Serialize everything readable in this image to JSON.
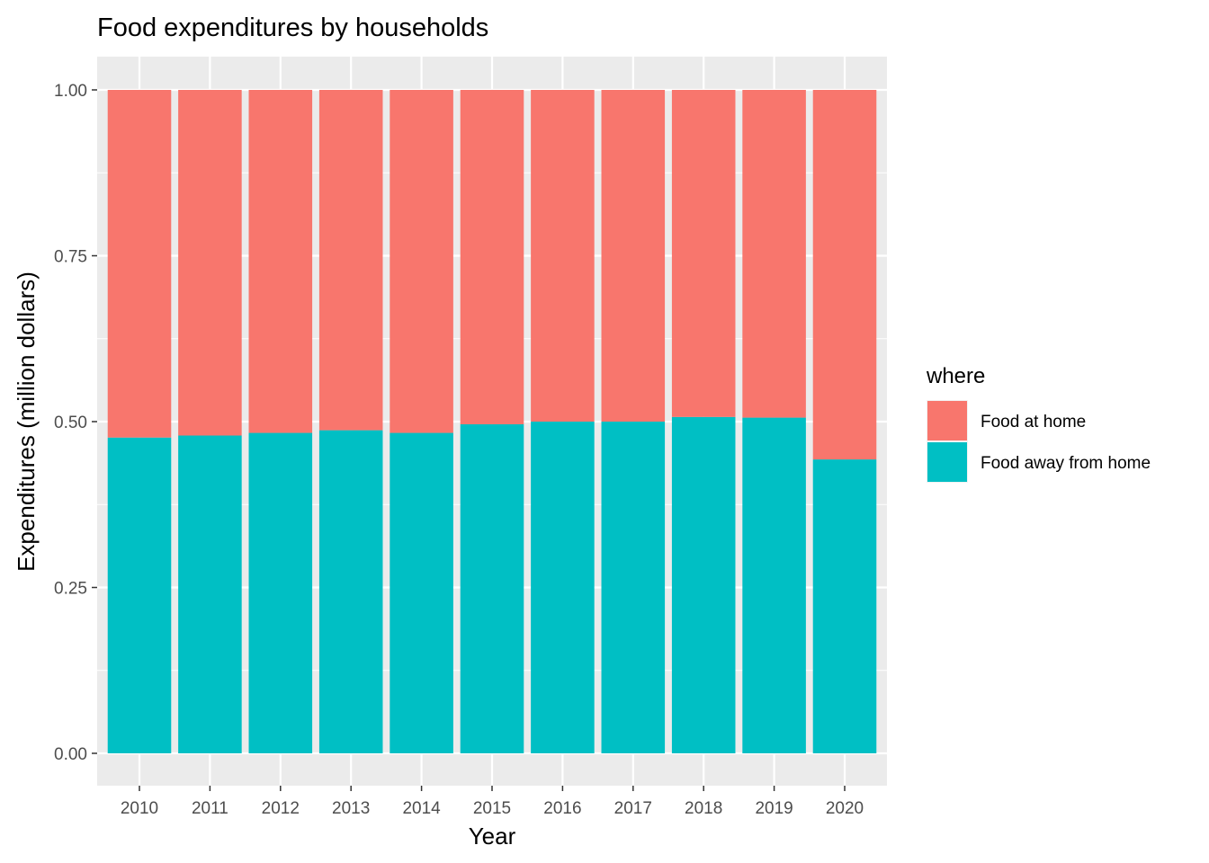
{
  "chart_data": {
    "type": "bar",
    "stacked": "fill",
    "title": "Food expenditures by households",
    "xlabel": "Year",
    "ylabel": "Expenditures (million dollars)",
    "categories": [
      "2010",
      "2011",
      "2012",
      "2013",
      "2014",
      "2015",
      "2016",
      "2017",
      "2018",
      "2019",
      "2020"
    ],
    "y_ticks": [
      "0.00",
      "0.25",
      "0.50",
      "0.75",
      "1.00"
    ],
    "ylim": [
      0,
      1
    ],
    "grid": true,
    "legend": {
      "title": "where",
      "position": "right"
    },
    "series": [
      {
        "name": "Food away from home",
        "color": "#00BFC4",
        "values": [
          0.476,
          0.479,
          0.483,
          0.487,
          0.483,
          0.496,
          0.5,
          0.5,
          0.507,
          0.506,
          0.443
        ]
      },
      {
        "name": "Food at home",
        "color": "#F8766D",
        "values": [
          0.524,
          0.521,
          0.517,
          0.513,
          0.517,
          0.504,
          0.5,
          0.5,
          0.493,
          0.494,
          0.557
        ]
      }
    ]
  }
}
